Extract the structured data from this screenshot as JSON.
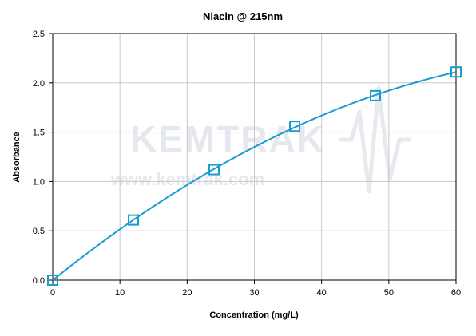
{
  "chart_data": {
    "type": "scatter",
    "title": "Niacin @ 215nm",
    "xlabel": "Concentration (mg/L)",
    "ylabel": "Absorbance",
    "xlim": [
      0,
      60
    ],
    "ylim": [
      0,
      2.5
    ],
    "x_ticks": [
      "0",
      "10",
      "20",
      "30",
      "40",
      "50",
      "60"
    ],
    "y_ticks": [
      "0.0",
      "0.5",
      "1.0",
      "1.5",
      "2.0",
      "2.5"
    ],
    "grid": true,
    "legend": "none",
    "marker": "open-square",
    "series": [
      {
        "points": [
          {
            "x": 0,
            "y": 0.0
          },
          {
            "x": 12,
            "y": 0.61
          },
          {
            "x": 24,
            "y": 1.12
          },
          {
            "x": 36,
            "y": 1.56
          },
          {
            "x": 48,
            "y": 1.87
          },
          {
            "x": 60,
            "y": 2.11
          }
        ],
        "trendline": "polynomial"
      }
    ],
    "watermark": {
      "brand": "KEMTRAK",
      "url": "www.kemtrak.com"
    },
    "colors": {
      "series": "#1a9bd1",
      "gridline": "#c8c8c8",
      "axis": "#000000",
      "watermark": "#b7c3d2"
    }
  }
}
